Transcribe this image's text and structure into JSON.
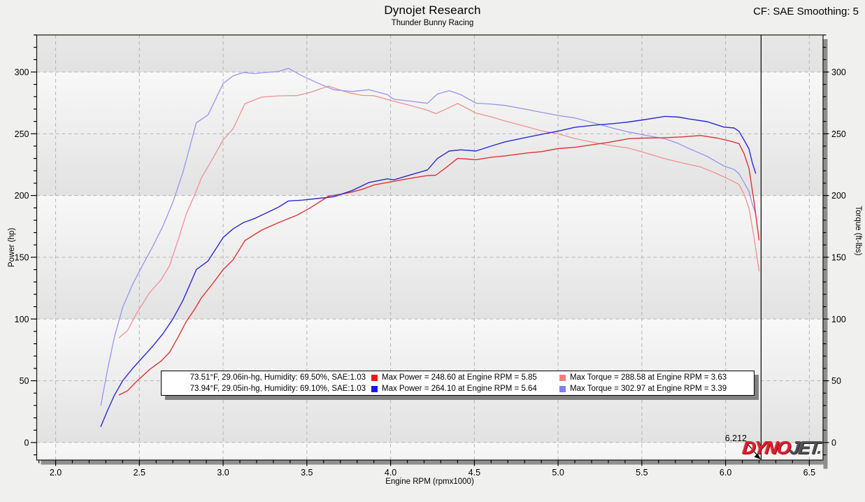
{
  "header": {
    "title": "Dynojet Research",
    "subtitle": "Thunder Bunny Racing",
    "cf_label": "CF: SAE Smoothing: 5"
  },
  "axes": {
    "x_label": "Engine RPM (rpmx1000)",
    "y_left_label": "Power (hp)",
    "y_right_label": "Torque (ft-lbs)",
    "x_ticks": [
      2.0,
      2.5,
      3.0,
      3.5,
      4.0,
      4.5,
      5.0,
      5.5,
      6.0,
      6.5
    ],
    "y_ticks": [
      0,
      50,
      100,
      150,
      200,
      250,
      300
    ],
    "x_minor_step": 0.1,
    "y_minor_step": 10,
    "x_range": [
      1.887,
      6.582
    ],
    "y_range": [
      -14.2,
      330
    ]
  },
  "cursor": {
    "label": "6.212",
    "rpm": 6.212
  },
  "logo": {
    "text1": "DYNO",
    "text2": "JET",
    "dot": "."
  },
  "colors": {
    "grid": "#b5b5b5",
    "frame": "#141414",
    "shadow": "#8f8f8f",
    "cursor": "#000000",
    "run1_power": "#dd3434",
    "run1_torque": "#f29090",
    "run2_power": "#2a2ad0",
    "run2_torque": "#9595ef",
    "swatch_power_1": "#f01818",
    "swatch_power_2": "#1818f0",
    "swatch_torque_1": "#f97c7c",
    "swatch_torque_2": "#7d7df9"
  },
  "legend": {
    "rows": [
      {
        "env": "73.51°F, 29.06in-hg, Humidity: 69.50%, SAE:1.03",
        "power_label": "Max Power = 248.60 at Engine RPM = 5.85",
        "torque_label": "Max Torque = 288.58 at Engine RPM = 3.63",
        "power_color": "#f01818",
        "torque_color": "#f97c7c"
      },
      {
        "env": "73.94°F, 29.05in-hg, Humidity: 69.10%, SAE:1.03",
        "power_label": "Max Power = 264.10 at Engine RPM = 5.64",
        "torque_label": "Max Torque = 302.97 at Engine RPM = 3.39",
        "power_color": "#1818f0",
        "torque_color": "#7d7df9"
      }
    ]
  },
  "chart_data": {
    "type": "line",
    "title": "Dynojet Research - Thunder Bunny Racing",
    "xlabel": "Engine RPM (rpmx1000)",
    "ylabel_left": "Power (hp)",
    "ylabel_right": "Torque (ft-lbs)",
    "xlim": [
      1.887,
      6.582
    ],
    "ylim": [
      -14.2,
      330
    ],
    "grid": true,
    "max_values": {
      "run1": {
        "max_power": 248.6,
        "max_power_rpm": 5.85,
        "max_torque": 288.58,
        "max_torque_rpm": 3.63
      },
      "run2": {
        "max_power": 264.1,
        "max_power_rpm": 5.64,
        "max_torque": 302.97,
        "max_torque_rpm": 3.39
      }
    },
    "series": [
      {
        "name": "Run 1 Torque (ft-lbs)",
        "color": "#f29090",
        "width": 1.3,
        "x": [
          2.38,
          2.43,
          2.48,
          2.56,
          2.63,
          2.68,
          2.73,
          2.78,
          2.83,
          2.87,
          2.94,
          3.0,
          3.06,
          3.13,
          3.23,
          3.33,
          3.44,
          3.52,
          3.63,
          3.7,
          3.76,
          3.83,
          3.9,
          4.0,
          4.1,
          4.21,
          4.27,
          4.33,
          4.4,
          4.46,
          4.51,
          4.6,
          4.68,
          4.82,
          4.9,
          5.0,
          5.1,
          5.2,
          5.3,
          5.42,
          5.5,
          5.63,
          5.75,
          5.85,
          5.95,
          6.03,
          6.08,
          6.11,
          6.14,
          6.17,
          6.2
        ],
        "y": [
          85.0,
          90.8,
          103.8,
          121.1,
          131.8,
          143.1,
          163.5,
          185.2,
          200.4,
          214.1,
          230.4,
          245.1,
          254.0,
          274.3,
          279.7,
          280.7,
          280.9,
          283.5,
          288.6,
          285.3,
          282.9,
          281.1,
          280.8,
          277.0,
          273.5,
          269.5,
          266.3,
          269.9,
          274.5,
          270.3,
          266.7,
          263.7,
          260.4,
          255.5,
          252.4,
          250.0,
          246.1,
          243.4,
          240.8,
          238.4,
          235.4,
          230.1,
          226.1,
          223.2,
          217.6,
          212.5,
          209.0,
          201.1,
          189.9,
          166.0,
          138.9
        ]
      },
      {
        "name": "Run 2 Torque (ft-lbs)",
        "color": "#9595ef",
        "width": 1.3,
        "x": [
          2.27,
          2.31,
          2.35,
          2.4,
          2.46,
          2.52,
          2.58,
          2.64,
          2.7,
          2.76,
          2.84,
          2.91,
          3.0,
          3.06,
          3.12,
          3.19,
          3.26,
          3.33,
          3.39,
          3.47,
          3.56,
          3.66,
          3.77,
          3.87,
          3.98,
          4.02,
          4.1,
          4.22,
          4.28,
          4.35,
          4.42,
          4.51,
          4.6,
          4.68,
          4.82,
          4.9,
          5.01,
          5.1,
          5.22,
          5.33,
          5.42,
          5.52,
          5.64,
          5.72,
          5.78,
          5.89,
          5.99,
          6.05,
          6.08,
          6.11,
          6.14,
          6.16,
          6.18
        ],
        "y": [
          30.1,
          59.1,
          84.9,
          109.4,
          128.1,
          143.8,
          158.8,
          175.1,
          194.5,
          218.8,
          258.9,
          265.3,
          290.6,
          296.9,
          299.6,
          298.8,
          299.7,
          300.4,
          303.0,
          297.0,
          291.4,
          285.6,
          284.2,
          285.7,
          281.7,
          277.9,
          276.7,
          274.7,
          282.2,
          284.9,
          281.6,
          274.8,
          274.0,
          273.0,
          269.5,
          267.4,
          264.6,
          262.8,
          258.6,
          254.4,
          251.5,
          248.8,
          245.9,
          242.0,
          238.1,
          231.7,
          223.9,
          221.1,
          217.7,
          210.6,
          203.3,
          193.1,
          185.3
        ]
      },
      {
        "name": "Run 1 Power (hp)",
        "color": "#dd3434",
        "width": 1.4,
        "x": [
          2.38,
          2.43,
          2.48,
          2.56,
          2.63,
          2.68,
          2.73,
          2.78,
          2.83,
          2.87,
          2.94,
          3.0,
          3.06,
          3.13,
          3.23,
          3.33,
          3.44,
          3.52,
          3.63,
          3.7,
          3.76,
          3.83,
          3.9,
          4.0,
          4.1,
          4.21,
          4.27,
          4.33,
          4.4,
          4.46,
          4.51,
          4.6,
          4.68,
          4.82,
          4.9,
          5.0,
          5.1,
          5.2,
          5.3,
          5.42,
          5.5,
          5.63,
          5.75,
          5.85,
          5.95,
          6.03,
          6.08,
          6.11,
          6.14,
          6.17,
          6.2
        ],
        "y": [
          38.5,
          42.0,
          49.0,
          59.0,
          66.0,
          73.0,
          85.0,
          98.0,
          108.0,
          117.0,
          129.0,
          140.0,
          148.0,
          163.5,
          172.0,
          178.0,
          184.0,
          190.0,
          199.5,
          201.0,
          202.5,
          205.0,
          208.5,
          211.0,
          213.5,
          216.0,
          216.5,
          222.5,
          230.0,
          229.5,
          229.0,
          231.0,
          232.0,
          234.5,
          235.5,
          238.0,
          239.0,
          241.0,
          243.0,
          246.0,
          246.5,
          246.7,
          247.5,
          248.6,
          246.5,
          244.0,
          242.0,
          234.0,
          222.0,
          195.0,
          164.0
        ]
      },
      {
        "name": "Run 2 Power (hp)",
        "color": "#2a2ad0",
        "width": 1.4,
        "x": [
          2.27,
          2.31,
          2.35,
          2.4,
          2.46,
          2.52,
          2.58,
          2.64,
          2.7,
          2.76,
          2.84,
          2.91,
          3.0,
          3.06,
          3.12,
          3.19,
          3.26,
          3.33,
          3.39,
          3.47,
          3.56,
          3.66,
          3.77,
          3.87,
          3.98,
          4.02,
          4.1,
          4.22,
          4.28,
          4.35,
          4.42,
          4.51,
          4.6,
          4.68,
          4.82,
          4.9,
          5.01,
          5.1,
          5.22,
          5.33,
          5.42,
          5.52,
          5.64,
          5.72,
          5.78,
          5.89,
          5.99,
          6.05,
          6.08,
          6.11,
          6.14,
          6.16,
          6.18
        ],
        "y": [
          13.0,
          26.0,
          38.0,
          50.0,
          60.0,
          69.0,
          78.0,
          88.0,
          100.0,
          115.0,
          140.0,
          147.0,
          166.0,
          173.0,
          178.0,
          181.5,
          186.0,
          190.5,
          195.6,
          196.2,
          197.5,
          199.0,
          204.0,
          210.5,
          213.5,
          212.7,
          216.0,
          220.7,
          230.0,
          236.0,
          237.0,
          236.0,
          240.0,
          243.3,
          247.3,
          249.5,
          252.4,
          255.2,
          257.0,
          258.2,
          259.5,
          261.5,
          264.1,
          263.5,
          262.0,
          259.8,
          255.4,
          254.7,
          252.0,
          245.0,
          237.7,
          226.4,
          218.0
        ]
      }
    ]
  }
}
